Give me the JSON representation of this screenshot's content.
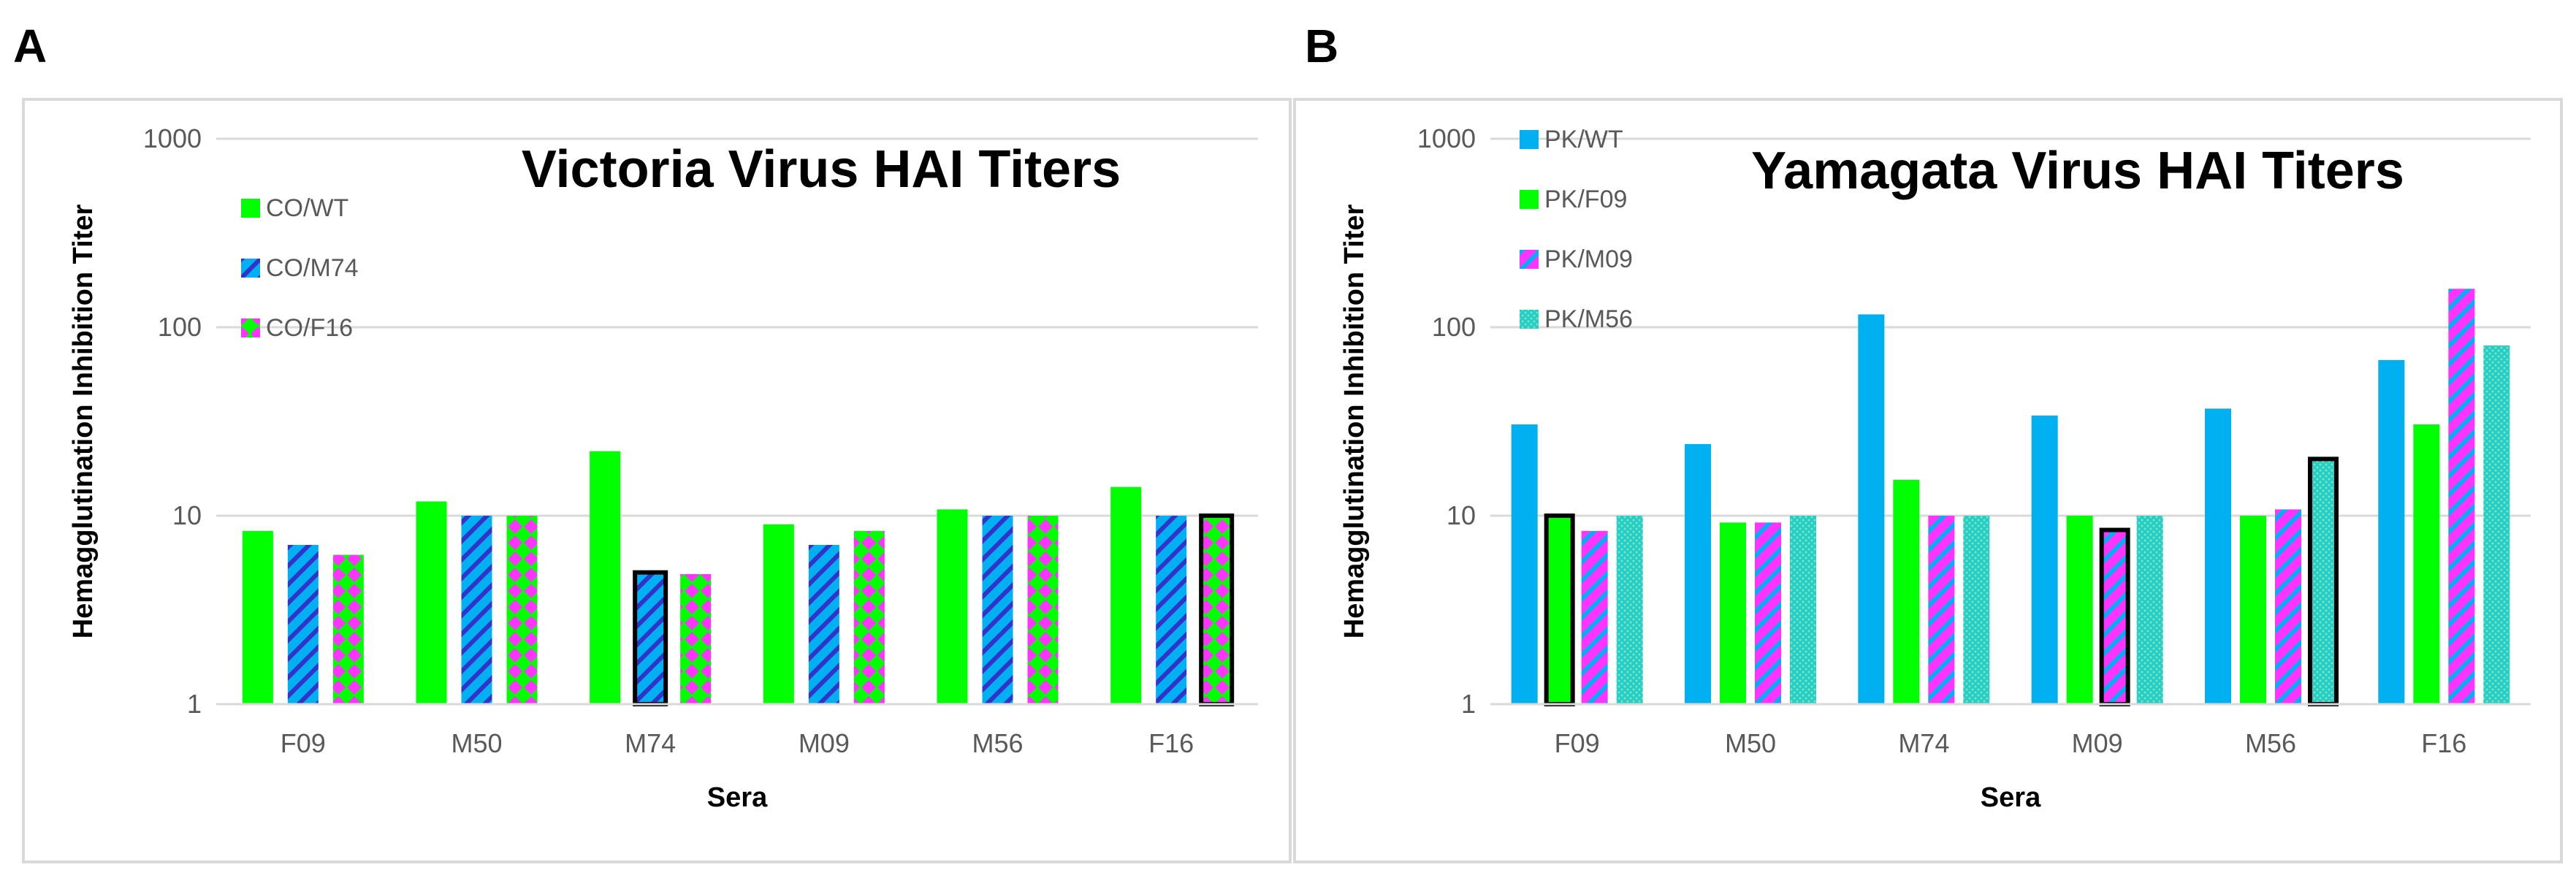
{
  "panels": {
    "a": {
      "letter": "A"
    },
    "b": {
      "letter": "B"
    }
  },
  "colors": {
    "green": "#00ff00",
    "blue": "#00b0f0",
    "pink": "#ff33ff",
    "teal": "#1ecece",
    "stripe_blue": "#3333cc"
  },
  "chart_data": [
    {
      "type": "bar",
      "title": "Victoria Virus HAI Titers",
      "xlabel": "Sera",
      "ylabel": "Hemagglutination Inhibition Titer",
      "yscale": "log",
      "ylim": [
        1,
        1000
      ],
      "yticks": [
        "1",
        "10",
        "100",
        "1000"
      ],
      "grid": true,
      "legend_position": "top-left",
      "categories": [
        "F09",
        "M50",
        "M74",
        "M09",
        "M56",
        "F16"
      ],
      "series": [
        {
          "name": "CO/WT",
          "values": [
            8.3,
            11.9,
            22,
            9,
            10.8,
            14.2
          ],
          "color": "#00ff00",
          "pattern": "solid"
        },
        {
          "name": "CO/M74",
          "values": [
            7,
            10,
            5,
            7,
            10,
            10
          ],
          "color": "#00b0f0",
          "pattern": "diagonal-stripes"
        },
        {
          "name": "CO/F16",
          "values": [
            6.2,
            10,
            4.9,
            8.3,
            10,
            10
          ],
          "color": "#00ff00",
          "pattern": "pink-diamonds"
        }
      ],
      "highlighted": [
        {
          "series": 1,
          "category": 2
        },
        {
          "series": 2,
          "category": 5
        }
      ]
    },
    {
      "type": "bar",
      "title": "Yamagata Virus HAI Titers",
      "xlabel": "Sera",
      "ylabel": "Hemagglutination Inhibition Titer",
      "yscale": "log",
      "ylim": [
        1,
        1000
      ],
      "yticks": [
        "1",
        "10",
        "100",
        "1000"
      ],
      "grid": true,
      "legend_position": "top-left",
      "categories": [
        "F09",
        "M50",
        "M74",
        "M09",
        "M56",
        "F16"
      ],
      "series": [
        {
          "name": "PK/WT",
          "values": [
            30.5,
            24,
            117,
            34,
            37,
            67
          ],
          "color": "#00b0f0",
          "pattern": "solid"
        },
        {
          "name": "PK/F09",
          "values": [
            10,
            9.2,
            15.5,
            10,
            10,
            30.5
          ],
          "color": "#00ff00",
          "pattern": "solid"
        },
        {
          "name": "PK/M09",
          "values": [
            8.3,
            9.2,
            10,
            8.4,
            10.8,
            160
          ],
          "color": "#ff33ff",
          "pattern": "diagonal-stripes"
        },
        {
          "name": "PK/M56",
          "values": [
            10,
            10,
            10,
            10,
            20,
            80
          ],
          "color": "#1ecece",
          "pattern": "dots"
        }
      ],
      "highlighted": [
        {
          "series": 1,
          "category": 0
        },
        {
          "series": 2,
          "category": 3
        },
        {
          "series": 3,
          "category": 4
        }
      ]
    }
  ]
}
